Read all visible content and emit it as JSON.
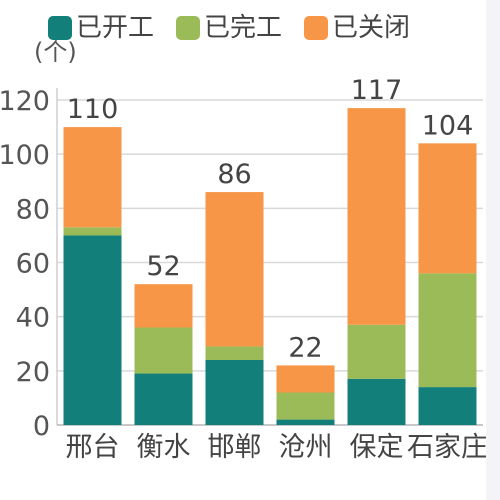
{
  "chart_data": {
    "type": "bar",
    "stacked": true,
    "ylabel": "(个)",
    "ylim": [
      0,
      120
    ],
    "yticks": [
      0,
      20,
      40,
      60,
      80,
      100,
      120
    ],
    "ytick_labels": [
      "0",
      "20",
      "40",
      "60",
      "80",
      "100",
      "120"
    ],
    "grid": true,
    "legend_position": "top",
    "categories": [
      "邢台",
      "衡水",
      "邯郸",
      "沧州",
      "保定",
      "石家庄"
    ],
    "series": [
      {
        "name": "已开工",
        "color": "#137f7a",
        "values": [
          70,
          19,
          24,
          2,
          17,
          14
        ]
      },
      {
        "name": "已完工",
        "color": "#9bbb59",
        "values": [
          3,
          17,
          5,
          10,
          20,
          42
        ]
      },
      {
        "name": "已关闭",
        "color": "#f79646",
        "values": [
          37,
          16,
          57,
          10,
          80,
          48
        ]
      }
    ],
    "totals": [
      "110",
      "52",
      "86",
      "22",
      "117",
      "104"
    ]
  }
}
